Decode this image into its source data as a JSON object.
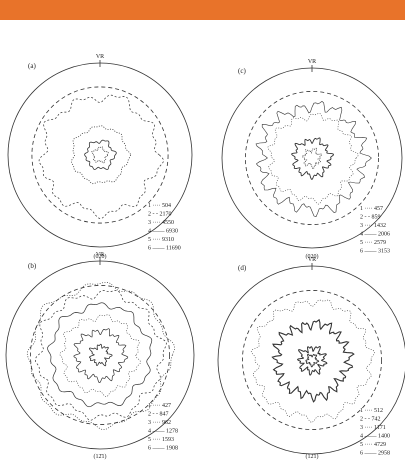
{
  "panels": [
    {
      "label": "(a)",
      "direction": "VR",
      "caption": "(020)",
      "legend": [
        "1 ···· 504",
        "2 - - 2170",
        "3 ···· 4550",
        "4 —— 6930",
        "5 ···· 9310",
        "6 —— 11690"
      ]
    },
    {
      "label": "(c)",
      "direction": "VR",
      "caption": "(020)",
      "legend": [
        "1 ···· 457",
        "2 - - 859",
        "3 ···· 1432",
        "4 —— 2006",
        "5 ···· 2579",
        "6 —— 3153"
      ]
    },
    {
      "label": "(b)",
      "direction": "VR",
      "caption": "(12̄1)",
      "legend": [
        "1 ···· 427",
        "2 - - 847",
        "3 ···· 962",
        "4 —— 1278",
        "5 ···· 1593",
        "6 —— 1908"
      ]
    },
    {
      "label": "(d)",
      "direction": "VR",
      "caption": "(12̄1)",
      "legend": [
        "1 ···· 512",
        "2 - - 742",
        "3 ···· 1171",
        "4 —— 1400",
        "5 ···· 4729",
        "6 —— 2958"
      ]
    }
  ]
}
